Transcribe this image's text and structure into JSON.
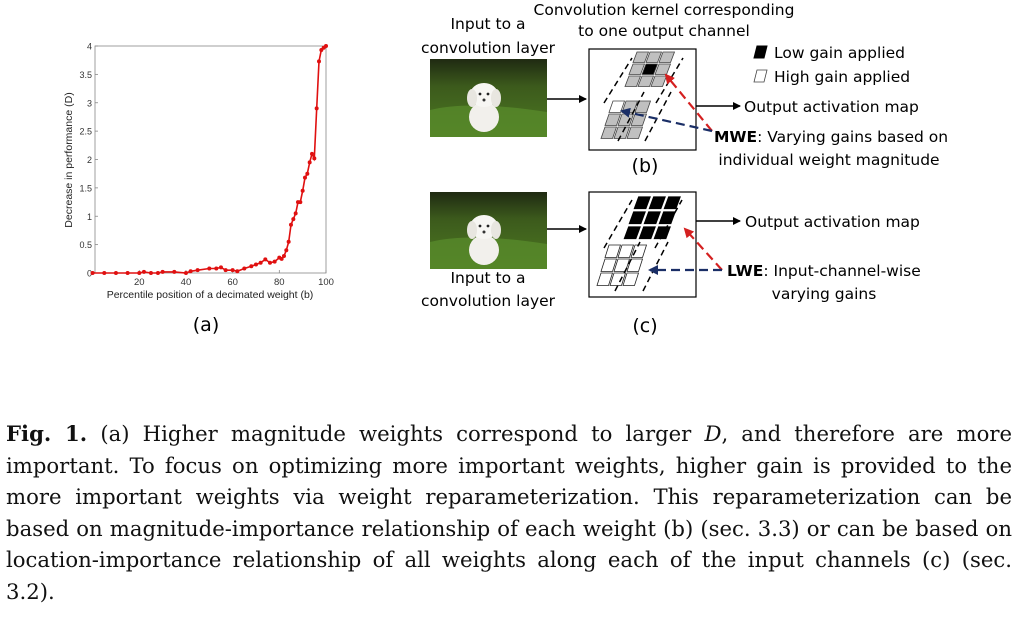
{
  "figure": {
    "panel_a_label": "(a)",
    "panel_b_label": "(b)",
    "panel_c_label": "(c)",
    "input_label_top_line1": "Input to a",
    "input_label_top_line2": "convolution layer",
    "input_label_bottom_line1": "Input to a",
    "input_label_bottom_line2": "convolution layer",
    "kernel_title_line1": "Convolution kernel corresponding",
    "kernel_title_line2": "to one output channel",
    "legend_low": "Low gain applied",
    "legend_high": "High gain applied",
    "output_map_b": "Output activation map",
    "output_map_c": "Output activation map",
    "mwe_bold": "MWE",
    "mwe_text_line1": ": Varying gains based on",
    "mwe_text_line2": "individual weight magnitude",
    "lwe_bold": "LWE",
    "lwe_text_line1": ": Input-channel-wise",
    "lwe_text_line2": "varying gains",
    "colors": {
      "curve": "#e01010",
      "red_arrow": "#d42020",
      "blue_arrow": "#1a2e66",
      "cell_gray": "#c0c0c0",
      "cell_black": "#000000"
    }
  },
  "chart_data": {
    "type": "line",
    "title": "",
    "xlabel": "Percentile position of a decimated weight (b)",
    "ylabel": "Decrease in performance (D)",
    "xlim": [
      0,
      100
    ],
    "ylim": [
      0,
      4
    ],
    "xticks": [
      "20",
      "40",
      "60",
      "80",
      "100"
    ],
    "yticks": [
      "0",
      "0.5",
      "1",
      "1.5",
      "2",
      "2.5",
      "3",
      "3.5",
      "4"
    ],
    "grid": false,
    "series": [
      {
        "name": "D",
        "marker": "star",
        "x": [
          0,
          5,
          10,
          15,
          20,
          22,
          25,
          28,
          30,
          35,
          40,
          42,
          45,
          50,
          53,
          55,
          57,
          60,
          62,
          65,
          68,
          70,
          72,
          74,
          76,
          78,
          80,
          81,
          82,
          83,
          84,
          85,
          86,
          87,
          88,
          89,
          90,
          91,
          92,
          93,
          94,
          95,
          96,
          97,
          98,
          99,
          100
        ],
        "y": [
          0.0,
          0.0,
          0.0,
          0.0,
          0.0,
          0.02,
          0.0,
          0.0,
          0.02,
          0.02,
          0.0,
          0.03,
          0.05,
          0.08,
          0.08,
          0.1,
          0.05,
          0.05,
          0.03,
          0.08,
          0.12,
          0.15,
          0.18,
          0.24,
          0.18,
          0.2,
          0.27,
          0.25,
          0.3,
          0.4,
          0.55,
          0.85,
          0.95,
          1.05,
          1.25,
          1.25,
          1.45,
          1.68,
          1.75,
          1.95,
          2.1,
          2.02,
          2.9,
          3.73,
          3.93,
          3.97,
          4.0
        ]
      }
    ]
  },
  "caption": {
    "label": "Fig. 1.",
    "text_1": " (a) Higher magnitude weights correspond to larger ",
    "math_D": "D",
    "text_2": ", and therefore are more important. To focus on optimizing more important weights, higher gain is provided to the more important weights via weight reparameterization. This reparameterization can be based on magnitude-importance relationship of each weight (b) (sec. 3.3) or can be based on location-importance relationship of all weights along each of the input channels (c) (sec. 3.2)."
  }
}
